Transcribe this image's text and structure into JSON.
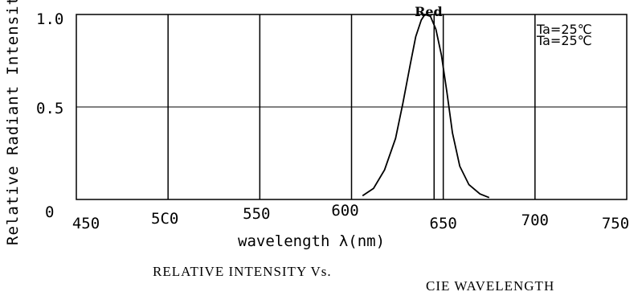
{
  "chart_data": {
    "type": "line",
    "ylabel": "Relative Radiant Intensity",
    "xlabel": "wavelength λ(nm)",
    "xlim": [
      450,
      750
    ],
    "ylim": [
      0,
      1.0
    ],
    "x_ticks": [
      450,
      500,
      550,
      600,
      650,
      700,
      750
    ],
    "x_tick_labels": [
      "450",
      "5C0",
      "550",
      "600",
      "650",
      "700",
      "750"
    ],
    "y_ticks": [
      0,
      0.5,
      1.0
    ],
    "y_tick_labels": [
      "0",
      "0.5",
      "1.0"
    ],
    "grid": true,
    "series": [
      {
        "name": "Red",
        "x": [
          606,
          612,
          618,
          624,
          628,
          632,
          635,
          638,
          640,
          643,
          646,
          649,
          652,
          655,
          659,
          664,
          670,
          675
        ],
        "y": [
          0.02,
          0.06,
          0.16,
          0.33,
          0.52,
          0.73,
          0.88,
          0.97,
          1.0,
          0.99,
          0.92,
          0.78,
          0.58,
          0.36,
          0.18,
          0.08,
          0.03,
          0.01
        ]
      }
    ],
    "annotations": [
      "Ta=25℃",
      "Ta=25℃"
    ]
  },
  "captions": {
    "line1": "RELATIVE INTENSITY Vs.",
    "line2": "CIE WAVELENGTH"
  }
}
